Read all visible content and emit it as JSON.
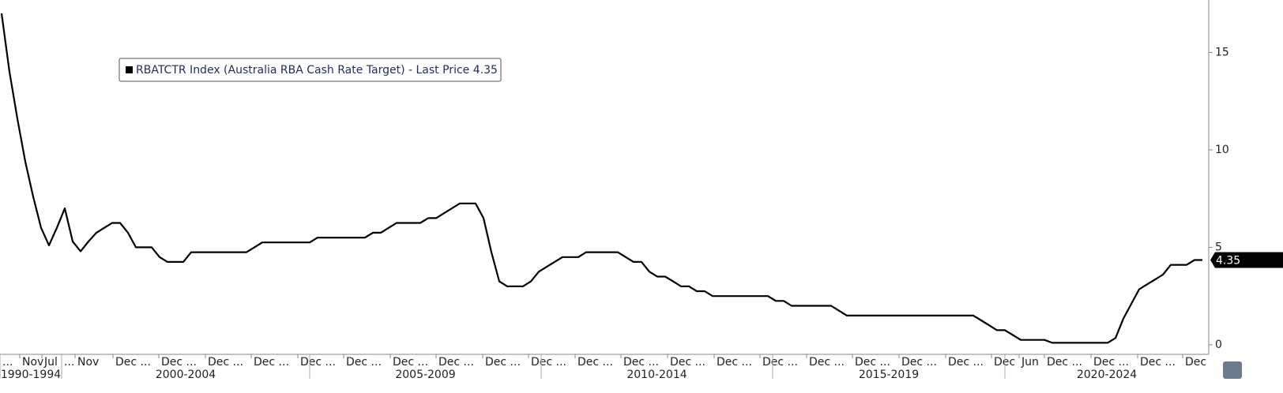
{
  "chart_data": {
    "type": "line",
    "series": [
      {
        "name": "RBATCTR Index (Australia RBA Cash Rate Target) - Last Price 4.35",
        "color": "#000000",
        "values": [
          17.0,
          14.0,
          11.6,
          9.4,
          7.6,
          6.0,
          5.1,
          6.0,
          7.0,
          5.3,
          4.8,
          5.3,
          5.75,
          6.0,
          6.25,
          6.25,
          5.75,
          5.0,
          5.0,
          5.0,
          4.5,
          4.25,
          4.25,
          4.25,
          4.75,
          4.75,
          4.75,
          4.75,
          4.75,
          4.75,
          4.75,
          4.75,
          5.0,
          5.25,
          5.25,
          5.25,
          5.25,
          5.25,
          5.25,
          5.25,
          5.5,
          5.5,
          5.5,
          5.5,
          5.5,
          5.5,
          5.5,
          5.75,
          5.75,
          6.0,
          6.25,
          6.25,
          6.25,
          6.25,
          6.5,
          6.5,
          6.75,
          7.0,
          7.25,
          7.25,
          7.25,
          6.5,
          4.75,
          3.25,
          3.0,
          3.0,
          3.0,
          3.25,
          3.75,
          4.0,
          4.25,
          4.5,
          4.5,
          4.5,
          4.75,
          4.75,
          4.75,
          4.75,
          4.75,
          4.5,
          4.25,
          4.25,
          3.75,
          3.5,
          3.5,
          3.25,
          3.0,
          3.0,
          2.75,
          2.75,
          2.5,
          2.5,
          2.5,
          2.5,
          2.5,
          2.5,
          2.5,
          2.5,
          2.25,
          2.25,
          2.0,
          2.0,
          2.0,
          2.0,
          2.0,
          2.0,
          1.75,
          1.5,
          1.5,
          1.5,
          1.5,
          1.5,
          1.5,
          1.5,
          1.5,
          1.5,
          1.5,
          1.5,
          1.5,
          1.5,
          1.5,
          1.5,
          1.5,
          1.5,
          1.25,
          1.0,
          0.75,
          0.75,
          0.5,
          0.25,
          0.25,
          0.25,
          0.25,
          0.1,
          0.1,
          0.1,
          0.1,
          0.1,
          0.1,
          0.1,
          0.1,
          0.35,
          1.35,
          2.1,
          2.85,
          3.1,
          3.35,
          3.6,
          4.1,
          4.1,
          4.1,
          4.35,
          4.35
        ]
      }
    ],
    "xlim": [
      -0.2,
      152.8
    ],
    "xticks": [
      {
        "value": -0.2,
        "label": "..."
      },
      {
        "value": 2.3,
        "label": "Nov"
      },
      {
        "value": 5.1,
        "label": "Jul"
      },
      {
        "value": 7.6,
        "label": "..."
      },
      {
        "value": 9.3,
        "label": "Nov"
      },
      {
        "value": 14.1,
        "label": "Dec ..."
      },
      {
        "value": 19.9,
        "label": "Dec ..."
      },
      {
        "value": 25.8,
        "label": "Dec ..."
      },
      {
        "value": 31.6,
        "label": "Dec ..."
      },
      {
        "value": 37.5,
        "label": "Dec ..."
      },
      {
        "value": 43.3,
        "label": "Dec ..."
      },
      {
        "value": 49.2,
        "label": "Dec ..."
      },
      {
        "value": 55,
        "label": "Dec ..."
      },
      {
        "value": 60.9,
        "label": "Dec ..."
      },
      {
        "value": 66.7,
        "label": "Dec ..."
      },
      {
        "value": 72.6,
        "label": "Dec ..."
      },
      {
        "value": 78.4,
        "label": "Dec ..."
      },
      {
        "value": 84.3,
        "label": "Dec ..."
      },
      {
        "value": 90.2,
        "label": "Dec ..."
      },
      {
        "value": 96,
        "label": "Dec ..."
      },
      {
        "value": 101.9,
        "label": "Dec ..."
      },
      {
        "value": 107.7,
        "label": "Dec ..."
      },
      {
        "value": 113.6,
        "label": "Dec ..."
      },
      {
        "value": 119.5,
        "label": "Dec ..."
      },
      {
        "value": 125.3,
        "label": "Dec"
      },
      {
        "value": 128.8,
        "label": "Jun"
      },
      {
        "value": 132,
        "label": "Dec ..."
      },
      {
        "value": 137.9,
        "label": "Dec ..."
      },
      {
        "value": 143.8,
        "label": "Dec ..."
      },
      {
        "value": 149.5,
        "label": "Dec"
      }
    ],
    "groups": [
      {
        "label": "1990-1994",
        "start": -0.2,
        "end": 7.6
      },
      {
        "label": "2000-2004",
        "start": 7.6,
        "end": 39
      },
      {
        "label": "2005-2009",
        "start": 39,
        "end": 68.3
      },
      {
        "label": "2010-2014",
        "start": 68.3,
        "end": 97.6
      },
      {
        "label": "2015-2019",
        "start": 97.6,
        "end": 127
      },
      {
        "label": "2020-2024",
        "start": 127,
        "end": 156.3
      }
    ],
    "ylim": [
      -0.49,
      17.69
    ],
    "yticks": [
      0,
      5,
      10,
      15
    ]
  }
}
